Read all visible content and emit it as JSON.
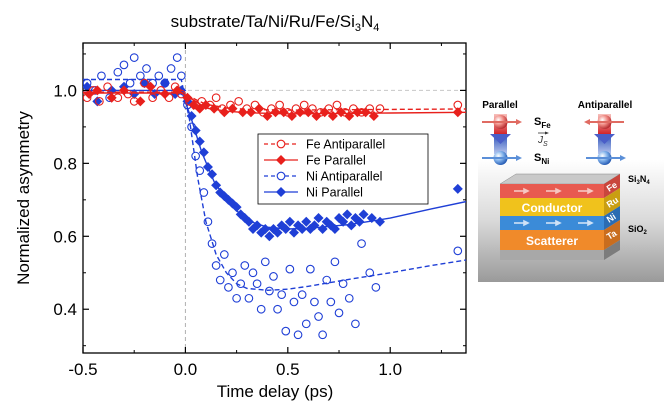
{
  "chart_data": {
    "type": "scatter",
    "title_main": "substrate/Ta/Ni/Ru/Fe/Si",
    "title_sub": "3",
    "title_tail": "N",
    "title_sub2": "4",
    "xlabel": "Time  delay (ps)",
    "ylabel": "Normalized asymmetry",
    "xlim": [
      -0.5,
      1.37
    ],
    "ylim": [
      0.28,
      1.13
    ],
    "xticks": [
      -0.5,
      0.0,
      0.5,
      1.0
    ],
    "xtick_labels": [
      "-0.5",
      "0.0",
      "0.5",
      "1.0"
    ],
    "yticks": [
      0.4,
      0.6,
      0.8,
      1.0
    ],
    "ytick_labels": [
      "0.4",
      "0.6",
      "0.8",
      "1.0"
    ],
    "grid": false,
    "reference_lines": {
      "vertical_x": 0.0,
      "horizontal_y": 1.0
    },
    "legend_position": "center-right",
    "legend": [
      {
        "label": "Fe Antiparallel",
        "color": "#e8201c",
        "marker": "circle-open",
        "line": "dashed"
      },
      {
        "label": "Fe Parallel",
        "color": "#e8201c",
        "marker": "diamond-filled",
        "line": "solid"
      },
      {
        "label": "Ni Antiparallel",
        "color": "#1f3fd6",
        "marker": "circle-open",
        "line": "dashed"
      },
      {
        "label": "Ni Parallel",
        "color": "#1f3fd6",
        "marker": "diamond-filled",
        "line": "solid"
      }
    ],
    "series": [
      {
        "name": "Fe Antiparallel",
        "color": "#e8201c",
        "marker": "circle-open",
        "points": [
          [
            -0.48,
            0.98
          ],
          [
            -0.45,
            1.0
          ],
          [
            -0.42,
            0.97
          ],
          [
            -0.38,
            1.01
          ],
          [
            -0.33,
            0.98
          ],
          [
            -0.28,
            0.99
          ],
          [
            -0.25,
            0.97
          ],
          [
            -0.2,
            1.02
          ],
          [
            -0.16,
            0.98
          ],
          [
            -0.12,
            1.0
          ],
          [
            -0.08,
            0.98
          ],
          [
            -0.05,
            1.01
          ],
          [
            -0.02,
            0.99
          ],
          [
            0.02,
            0.97
          ],
          [
            0.05,
            0.96
          ],
          [
            0.08,
            0.97
          ],
          [
            0.12,
            0.96
          ],
          [
            0.15,
            0.98
          ],
          [
            0.18,
            0.95
          ],
          [
            0.22,
            0.96
          ],
          [
            0.26,
            0.97
          ],
          [
            0.3,
            0.95
          ],
          [
            0.34,
            0.96
          ],
          [
            0.38,
            0.94
          ],
          [
            0.42,
            0.95
          ],
          [
            0.46,
            0.96
          ],
          [
            0.5,
            0.94
          ],
          [
            0.54,
            0.95
          ],
          [
            0.58,
            0.96
          ],
          [
            0.62,
            0.95
          ],
          [
            0.66,
            0.94
          ],
          [
            0.7,
            0.95
          ],
          [
            0.74,
            0.96
          ],
          [
            0.78,
            0.94
          ],
          [
            0.82,
            0.95
          ],
          [
            0.86,
            0.94
          ],
          [
            0.9,
            0.95
          ],
          [
            0.95,
            0.95
          ],
          [
            1.33,
            0.96
          ]
        ],
        "fit": [
          [
            -0.5,
            0.995
          ],
          [
            -0.02,
            0.995
          ],
          [
            0.05,
            0.975
          ],
          [
            0.1,
            0.962
          ],
          [
            0.2,
            0.952
          ],
          [
            0.3,
            0.948
          ],
          [
            0.5,
            0.946
          ],
          [
            0.8,
            0.947
          ],
          [
            1.0,
            0.948
          ],
          [
            1.37,
            0.949
          ]
        ]
      },
      {
        "name": "Fe Parallel",
        "color": "#e8201c",
        "marker": "diamond-filled",
        "points": [
          [
            -0.47,
            0.99
          ],
          [
            -0.43,
            1.0
          ],
          [
            -0.36,
            0.98
          ],
          [
            -0.3,
            1.0
          ],
          [
            -0.22,
            0.97
          ],
          [
            -0.17,
            1.01
          ],
          [
            -0.1,
            0.99
          ],
          [
            -0.04,
            1.0
          ],
          [
            0.01,
            0.98
          ],
          [
            0.04,
            0.96
          ],
          [
            0.07,
            0.95
          ],
          [
            0.1,
            0.96
          ],
          [
            0.14,
            0.95
          ],
          [
            0.19,
            0.94
          ],
          [
            0.23,
            0.95
          ],
          [
            0.28,
            0.94
          ],
          [
            0.32,
            0.94
          ],
          [
            0.36,
            0.95
          ],
          [
            0.4,
            0.93
          ],
          [
            0.44,
            0.94
          ],
          [
            0.48,
            0.94
          ],
          [
            0.52,
            0.93
          ],
          [
            0.56,
            0.94
          ],
          [
            0.6,
            0.94
          ],
          [
            0.64,
            0.93
          ],
          [
            0.68,
            0.94
          ],
          [
            0.72,
            0.93
          ],
          [
            0.76,
            0.94
          ],
          [
            0.8,
            0.93
          ],
          [
            0.84,
            0.94
          ],
          [
            0.88,
            0.94
          ],
          [
            0.92,
            0.93
          ],
          [
            1.33,
            0.94
          ]
        ],
        "fit": [
          [
            -0.5,
            0.993
          ],
          [
            -0.02,
            0.993
          ],
          [
            0.05,
            0.97
          ],
          [
            0.1,
            0.952
          ],
          [
            0.2,
            0.943
          ],
          [
            0.3,
            0.939
          ],
          [
            0.5,
            0.936
          ],
          [
            0.8,
            0.937
          ],
          [
            1.0,
            0.938
          ],
          [
            1.37,
            0.94
          ]
        ]
      },
      {
        "name": "Ni Antiparallel",
        "color": "#1f3fd6",
        "marker": "circle-open",
        "points": [
          [
            -0.48,
            1.02
          ],
          [
            -0.44,
            1.0
          ],
          [
            -0.41,
            1.04
          ],
          [
            -0.37,
            0.98
          ],
          [
            -0.33,
            1.05
          ],
          [
            -0.3,
            1.07
          ],
          [
            -0.27,
            1.02
          ],
          [
            -0.25,
            1.09
          ],
          [
            -0.22,
            1.04
          ],
          [
            -0.19,
            1.06
          ],
          [
            -0.16,
            1.02
          ],
          [
            -0.13,
            1.04
          ],
          [
            -0.1,
            1.02
          ],
          [
            -0.07,
            1.06
          ],
          [
            -0.04,
            1.09
          ],
          [
            -0.02,
            1.04
          ],
          [
            0.01,
            0.96
          ],
          [
            0.03,
            0.9
          ],
          [
            0.05,
            0.82
          ],
          [
            0.07,
            0.78
          ],
          [
            0.09,
            0.72
          ],
          [
            0.11,
            0.64
          ],
          [
            0.13,
            0.58
          ],
          [
            0.15,
            0.52
          ],
          [
            0.17,
            0.48
          ],
          [
            0.19,
            0.55
          ],
          [
            0.21,
            0.46
          ],
          [
            0.23,
            0.5
          ],
          [
            0.25,
            0.43
          ],
          [
            0.27,
            0.47
          ],
          [
            0.29,
            0.52
          ],
          [
            0.31,
            0.43
          ],
          [
            0.33,
            0.5
          ],
          [
            0.35,
            0.47
          ],
          [
            0.37,
            0.4
          ],
          [
            0.39,
            0.53
          ],
          [
            0.41,
            0.45
          ],
          [
            0.43,
            0.49
          ],
          [
            0.45,
            0.4
          ],
          [
            0.47,
            0.44
          ],
          [
            0.49,
            0.34
          ],
          [
            0.51,
            0.51
          ],
          [
            0.53,
            0.42
          ],
          [
            0.55,
            0.33
          ],
          [
            0.57,
            0.44
          ],
          [
            0.59,
            0.36
          ],
          [
            0.61,
            0.51
          ],
          [
            0.63,
            0.42
          ],
          [
            0.65,
            0.38
          ],
          [
            0.67,
            0.33
          ],
          [
            0.69,
            0.48
          ],
          [
            0.71,
            0.42
          ],
          [
            0.73,
            0.53
          ],
          [
            0.75,
            0.39
          ],
          [
            0.77,
            0.47
          ],
          [
            0.8,
            0.43
          ],
          [
            0.83,
            0.36
          ],
          [
            0.86,
            0.58
          ],
          [
            0.9,
            0.5
          ],
          [
            0.93,
            0.46
          ],
          [
            1.33,
            0.56
          ]
        ],
        "fit": [
          [
            -0.5,
            1.03
          ],
          [
            -0.02,
            1.03
          ],
          [
            0.02,
            0.92
          ],
          [
            0.06,
            0.76
          ],
          [
            0.1,
            0.64
          ],
          [
            0.15,
            0.55
          ],
          [
            0.2,
            0.5
          ],
          [
            0.25,
            0.47
          ],
          [
            0.3,
            0.457
          ],
          [
            0.4,
            0.452
          ],
          [
            0.5,
            0.455
          ],
          [
            0.6,
            0.463
          ],
          [
            0.8,
            0.482
          ],
          [
            1.0,
            0.5
          ],
          [
            1.2,
            0.52
          ],
          [
            1.37,
            0.535
          ]
        ]
      },
      {
        "name": "Ni Parallel",
        "color": "#1f3fd6",
        "marker": "diamond-filled",
        "points": [
          [
            -0.48,
            1.01
          ],
          [
            -0.43,
            0.97
          ],
          [
            -0.36,
            1.0
          ],
          [
            -0.3,
            1.01
          ],
          [
            -0.25,
            0.99
          ],
          [
            -0.2,
            1.02
          ],
          [
            -0.15,
            0.99
          ],
          [
            -0.1,
            1.02
          ],
          [
            -0.05,
            0.99
          ],
          [
            -0.02,
            1.0
          ],
          [
            0.01,
            0.97
          ],
          [
            0.03,
            0.93
          ],
          [
            0.05,
            0.89
          ],
          [
            0.07,
            0.86
          ],
          [
            0.09,
            0.83
          ],
          [
            0.11,
            0.79
          ],
          [
            0.13,
            0.77
          ],
          [
            0.15,
            0.74
          ],
          [
            0.17,
            0.72
          ],
          [
            0.19,
            0.71
          ],
          [
            0.21,
            0.7
          ],
          [
            0.23,
            0.69
          ],
          [
            0.25,
            0.68
          ],
          [
            0.27,
            0.66
          ],
          [
            0.29,
            0.65
          ],
          [
            0.31,
            0.64
          ],
          [
            0.33,
            0.62
          ],
          [
            0.35,
            0.63
          ],
          [
            0.37,
            0.61
          ],
          [
            0.39,
            0.62
          ],
          [
            0.41,
            0.6
          ],
          [
            0.43,
            0.62
          ],
          [
            0.45,
            0.61
          ],
          [
            0.47,
            0.63
          ],
          [
            0.49,
            0.62
          ],
          [
            0.51,
            0.64
          ],
          [
            0.53,
            0.61
          ],
          [
            0.55,
            0.63
          ],
          [
            0.57,
            0.62
          ],
          [
            0.59,
            0.64
          ],
          [
            0.61,
            0.62
          ],
          [
            0.63,
            0.63
          ],
          [
            0.65,
            0.65
          ],
          [
            0.67,
            0.62
          ],
          [
            0.69,
            0.64
          ],
          [
            0.71,
            0.63
          ],
          [
            0.73,
            0.62
          ],
          [
            0.75,
            0.65
          ],
          [
            0.77,
            0.64
          ],
          [
            0.79,
            0.66
          ],
          [
            0.81,
            0.63
          ],
          [
            0.83,
            0.65
          ],
          [
            0.85,
            0.64
          ],
          [
            0.87,
            0.66
          ],
          [
            0.91,
            0.65
          ],
          [
            0.95,
            0.64
          ],
          [
            1.33,
            0.73
          ]
        ],
        "fit": [
          [
            -0.5,
            1.0
          ],
          [
            -0.02,
            1.0
          ],
          [
            0.03,
            0.92
          ],
          [
            0.08,
            0.83
          ],
          [
            0.14,
            0.75
          ],
          [
            0.2,
            0.7
          ],
          [
            0.26,
            0.665
          ],
          [
            0.32,
            0.64
          ],
          [
            0.4,
            0.625
          ],
          [
            0.5,
            0.62
          ],
          [
            0.6,
            0.622
          ],
          [
            0.8,
            0.632
          ],
          [
            1.0,
            0.65
          ],
          [
            1.2,
            0.675
          ],
          [
            1.37,
            0.695
          ]
        ]
      }
    ]
  },
  "inset": {
    "label_parallel": "Parallel",
    "label_antiparallel": "Antiparallel",
    "label_s": "S",
    "label_s_fe_sub": "Fe",
    "label_s_ni_sub": "Ni",
    "label_js": "J",
    "label_js_sub": "S",
    "label_si3n4": "Si",
    "label_si3n4_sub1": "3",
    "label_si3n4_mid": "N",
    "label_si3n4_sub2": "4",
    "label_sio2": "SiO",
    "label_sio2_sub": "2",
    "layer_conductor": "Conductor",
    "layer_scatterer": "Scatterer",
    "side_fe": "Fe",
    "side_ru": "Ru",
    "side_ni": "Ni",
    "side_ta": "Ta",
    "colors": {
      "fe": "#e85a50",
      "ru": "#f0c21c",
      "ni": "#3b8bd8",
      "ta": "#f08a2a",
      "arrow_red": "#d2242a",
      "arrow_blue": "#2a4fb8"
    }
  }
}
